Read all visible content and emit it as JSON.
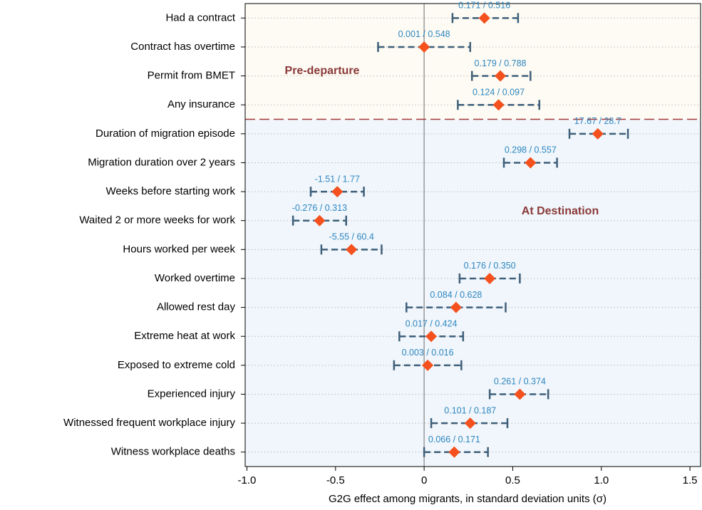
{
  "chart_data": {
    "type": "coefplot",
    "x_label": "G2G effect among migrants, in standard deviation units (σ)",
    "xlim": [
      -1.01,
      1.56
    ],
    "xticks": [
      {
        "value": -1,
        "label": "-1.0"
      },
      -0.5,
      0,
      0.5,
      {
        "value": 1,
        "label": "1.0"
      },
      1.5
    ],
    "grid": true,
    "marker_color": "#f4511e",
    "ci_color": "#3f5f7a",
    "annotation_color": "#2e86c1",
    "groups": [
      {
        "label": "Pre-departure",
        "background": "#fdfbf3",
        "categories": [
          "Had a contract",
          "Contract has overtime",
          "Permit from BMET",
          "Any insurance"
        ],
        "estimates": [
          0.34,
          0.0,
          0.43,
          0.42
        ],
        "ci_low": [
          0.16,
          -0.26,
          0.27,
          0.19
        ],
        "ci_high": [
          0.53,
          0.26,
          0.6,
          0.65
        ],
        "annotations": [
          "0.171 / 0.516",
          "0.001 / 0.548",
          "0.179 / 0.788",
          "0.124 / 0.097"
        ]
      },
      {
        "label": "At Destination",
        "background": "#f0f6fb",
        "categories": [
          "Duration of migration episode",
          "Migration duration over 2 years",
          "Weeks before starting work",
          "Waited 2 or more weeks for work",
          "Hours worked per week",
          "Worked overtime",
          "Allowed rest day",
          "Extreme heat at work",
          "Exposed to extreme cold",
          "Experienced injury",
          "Witnessed frequent workplace injury",
          "Witness workplace deaths"
        ],
        "estimates": [
          0.98,
          0.6,
          -0.49,
          -0.59,
          -0.41,
          0.37,
          0.18,
          0.04,
          0.02,
          0.54,
          0.26,
          0.17
        ],
        "ci_low": [
          0.82,
          0.45,
          -0.64,
          -0.74,
          -0.58,
          0.2,
          -0.1,
          -0.14,
          -0.17,
          0.37,
          0.04,
          0.0
        ],
        "ci_high": [
          1.15,
          0.75,
          -0.34,
          -0.44,
          -0.24,
          0.54,
          0.46,
          0.22,
          0.21,
          0.7,
          0.47,
          0.36
        ],
        "annotations": [
          "17.67 / 28.7",
          "0.298 / 0.557",
          "-1.51 / 1.77",
          "-0.276 / 0.313",
          "-5.55 / 60.4",
          "0.176 / 0.350",
          "0.084 / 0.628",
          "0.017 / 0.424",
          "0.003 / 0.016",
          "0.261 / 0.374",
          "0.101 / 0.187",
          "0.066 / 0.171"
        ]
      }
    ]
  }
}
